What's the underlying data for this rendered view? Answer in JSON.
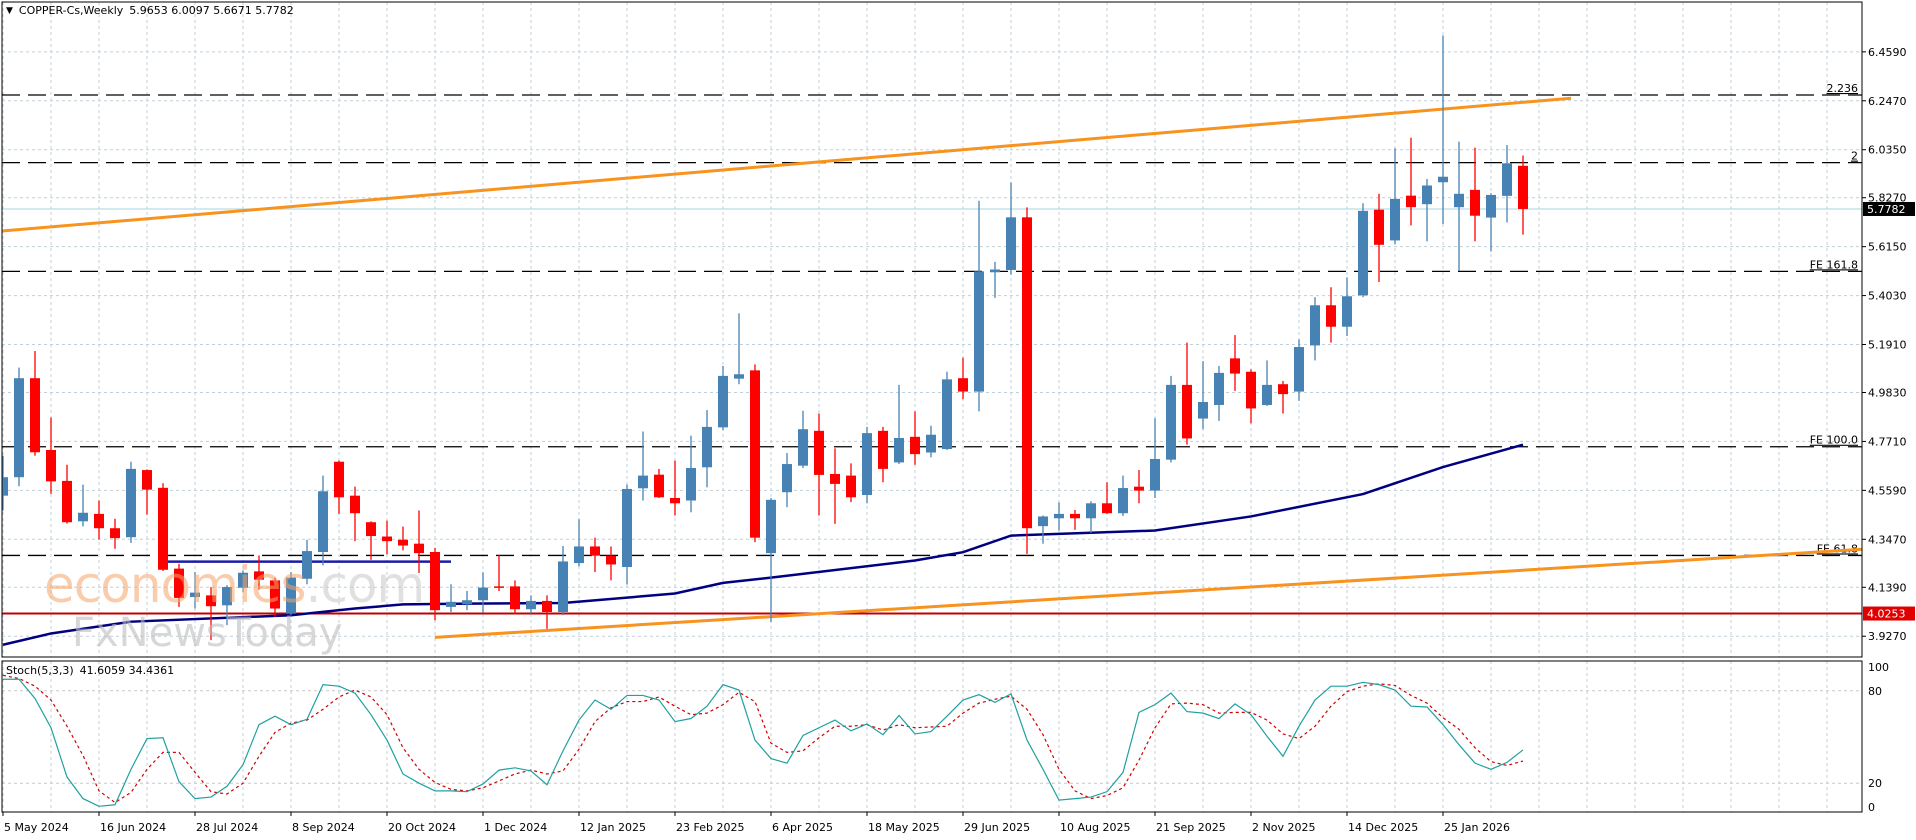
{
  "header": {
    "collapse_icon": "triangle-down-icon",
    "symbol_timeframe": "COPPER-Cs,Weekly",
    "ohlc": "5.9653 6.0097 5.6671 5.7782"
  },
  "price_axis": {
    "ticks": [
      "6.4590",
      "6.2470",
      "6.0350",
      "5.8270",
      "5.6150",
      "5.4030",
      "5.1910",
      "4.9830",
      "4.7710",
      "4.5590",
      "4.3470",
      "4.1390",
      "3.9270"
    ]
  },
  "current_price_label": "5.7782",
  "support_price_label": "4.0253",
  "stoch": {
    "label": "Stoch(5,3,3)",
    "values": "41.6059 34.4361",
    "ticks": [
      "100",
      "80",
      "20",
      "0"
    ]
  },
  "time_axis": {
    "ticks": [
      "5 May 2024",
      "16 Jun 2024",
      "28 Jul 2024",
      "8 Sep 2024",
      "20 Oct 2024",
      "1 Dec 2024",
      "12 Jan 2025",
      "23 Feb 2025",
      "6 Apr 2025",
      "18 May 2025",
      "29 Jun 2025",
      "10 Aug 2025",
      "21 Sep 2025",
      "2 Nov 2025",
      "14 Dec 2025",
      "25 Jan 2026"
    ]
  },
  "watermark": {
    "brand_main": "economies",
    "brand_suffix": ".com",
    "brand_2": "FxNewsToday"
  },
  "colors": {
    "bull": "#4682B4",
    "bear": "#FF0000",
    "ma": "#000080",
    "channel": "#F7931E",
    "support": "#C00000",
    "current_price_line": "#B8DDE6",
    "stoch_k": "#20A0A0",
    "stoch_d": "#D00000",
    "grid": "#C0D0D8"
  },
  "chart_data": {
    "type": "candlestick",
    "timeframe": "Weekly",
    "first_bar": "5 May 2024",
    "ylim": [
      3.837,
      6.675
    ],
    "grid": true,
    "ohlc": [
      [
        4.536,
        4.709,
        4.472,
        4.616
      ],
      [
        4.616,
        5.091,
        4.577,
        5.045
      ],
      [
        5.045,
        5.163,
        4.709,
        4.724
      ],
      [
        4.734,
        4.875,
        4.544,
        4.598
      ],
      [
        4.6,
        4.67,
        4.415,
        4.421
      ],
      [
        4.425,
        4.584,
        4.403,
        4.462
      ],
      [
        4.457,
        4.515,
        4.346,
        4.395
      ],
      [
        4.395,
        4.436,
        4.306,
        4.352
      ],
      [
        4.356,
        4.683,
        4.331,
        4.652
      ],
      [
        4.647,
        4.65,
        4.454,
        4.562
      ],
      [
        4.57,
        4.59,
        4.21,
        4.215
      ],
      [
        4.22,
        4.241,
        4.054,
        4.093
      ],
      [
        4.097,
        4.205,
        4.047,
        4.116
      ],
      [
        4.104,
        4.14,
        3.91,
        4.057
      ],
      [
        4.061,
        4.148,
        3.975,
        4.14
      ],
      [
        4.137,
        4.212,
        4.119,
        4.202
      ],
      [
        4.208,
        4.277,
        4.129,
        4.172
      ],
      [
        4.169,
        4.181,
        4.011,
        4.047
      ],
      [
        4.025,
        4.205,
        4.018,
        4.181
      ],
      [
        4.176,
        4.345,
        4.152,
        4.296
      ],
      [
        4.292,
        4.623,
        4.234,
        4.555
      ],
      [
        4.683,
        4.688,
        4.457,
        4.529
      ],
      [
        4.536,
        4.575,
        4.339,
        4.46
      ],
      [
        4.421,
        4.425,
        4.258,
        4.361
      ],
      [
        4.359,
        4.428,
        4.282,
        4.339
      ],
      [
        4.345,
        4.402,
        4.299,
        4.32
      ],
      [
        4.328,
        4.472,
        4.201,
        4.287
      ],
      [
        4.292,
        4.31,
        3.996,
        4.04
      ],
      [
        4.054,
        4.152,
        4.032,
        4.076
      ],
      [
        4.066,
        4.123,
        4.04,
        4.083
      ],
      [
        4.083,
        4.204,
        4.028,
        4.138
      ],
      [
        4.143,
        4.28,
        4.123,
        4.14
      ],
      [
        4.143,
        4.169,
        4.025,
        4.044
      ],
      [
        4.044,
        4.104,
        4.025,
        4.08
      ],
      [
        4.08,
        4.104,
        3.959,
        4.032
      ],
      [
        4.032,
        4.318,
        4.018,
        4.251
      ],
      [
        4.244,
        4.434,
        4.23,
        4.316
      ],
      [
        4.316,
        4.354,
        4.205,
        4.276
      ],
      [
        4.276,
        4.316,
        4.169,
        4.238
      ],
      [
        4.227,
        4.584,
        4.152,
        4.565
      ],
      [
        4.568,
        4.814,
        4.515,
        4.623
      ],
      [
        4.627,
        4.652,
        4.526,
        4.529
      ],
      [
        4.526,
        4.688,
        4.45,
        4.503
      ],
      [
        4.515,
        4.796,
        4.464,
        4.656
      ],
      [
        4.659,
        4.907,
        4.572,
        4.834
      ],
      [
        4.832,
        5.098,
        4.82,
        5.055
      ],
      [
        5.043,
        5.326,
        5.019,
        5.062
      ],
      [
        5.079,
        5.105,
        4.335,
        4.354
      ],
      [
        4.287,
        4.526,
        3.989,
        4.518
      ],
      [
        4.551,
        4.721,
        4.486,
        4.673
      ],
      [
        4.666,
        4.904,
        4.656,
        4.824
      ],
      [
        4.817,
        4.892,
        4.45,
        4.626
      ],
      [
        4.63,
        4.741,
        4.414,
        4.587
      ],
      [
        4.623,
        4.676,
        4.508,
        4.529
      ],
      [
        4.539,
        4.834,
        4.503,
        4.807
      ],
      [
        4.817,
        4.834,
        4.594,
        4.652
      ],
      [
        4.68,
        5.016,
        4.673,
        4.786
      ],
      [
        4.791,
        4.901,
        4.67,
        4.716
      ],
      [
        4.723,
        4.839,
        4.702,
        4.8
      ],
      [
        4.738,
        5.073,
        4.734,
        5.04
      ],
      [
        5.045,
        5.134,
        4.954,
        4.987
      ],
      [
        4.987,
        5.814,
        4.901,
        5.508
      ],
      [
        5.504,
        5.549,
        5.393,
        5.516
      ],
      [
        5.514,
        5.893,
        5.494,
        5.742
      ],
      [
        5.742,
        5.785,
        4.284,
        4.395
      ],
      [
        4.404,
        4.45,
        4.328,
        4.446
      ],
      [
        4.438,
        4.507,
        4.385,
        4.457
      ],
      [
        4.457,
        4.474,
        4.388,
        4.438
      ],
      [
        4.438,
        4.512,
        4.374,
        4.503
      ],
      [
        4.503,
        4.594,
        4.457,
        4.46
      ],
      [
        4.46,
        4.623,
        4.448,
        4.569
      ],
      [
        4.575,
        4.647,
        4.503,
        4.558
      ],
      [
        4.558,
        4.872,
        4.526,
        4.695
      ],
      [
        4.692,
        5.055,
        4.68,
        5.016
      ],
      [
        5.016,
        5.199,
        4.757,
        4.784
      ],
      [
        4.87,
        5.119,
        4.824,
        4.942
      ],
      [
        4.929,
        5.098,
        4.86,
        5.068
      ],
      [
        5.131,
        5.232,
        4.99,
        5.065
      ],
      [
        5.073,
        5.083,
        4.849,
        4.914
      ],
      [
        4.929,
        5.122,
        4.925,
        5.016
      ],
      [
        5.019,
        5.033,
        4.892,
        4.976
      ],
      [
        4.987,
        5.213,
        4.947,
        5.18
      ],
      [
        5.187,
        5.396,
        5.122,
        5.361
      ],
      [
        5.361,
        5.439,
        5.199,
        5.268
      ],
      [
        5.268,
        5.482,
        5.228,
        5.4
      ],
      [
        5.404,
        5.803,
        5.396,
        5.77
      ],
      [
        5.775,
        5.844,
        5.462,
        5.623
      ],
      [
        5.642,
        6.041,
        5.626,
        5.822
      ],
      [
        5.836,
        6.087,
        5.707,
        5.786
      ],
      [
        5.799,
        5.908,
        5.638,
        5.88
      ],
      [
        5.894,
        6.53,
        5.713,
        5.918
      ],
      [
        5.786,
        6.07,
        5.511,
        5.844
      ],
      [
        5.861,
        6.044,
        5.638,
        5.749
      ],
      [
        5.741,
        5.846,
        5.594,
        5.839
      ],
      [
        5.835,
        6.055,
        5.72,
        5.976
      ],
      [
        5.9653,
        6.0097,
        5.6671,
        5.7782
      ]
    ],
    "moving_average": [
      [
        "5 May 2024",
        3.89
      ],
      [
        "26 May 2024",
        3.939
      ],
      [
        "30 Jun 2024",
        3.99
      ],
      [
        "8 Sep 2024",
        4.018
      ],
      [
        "6 Oct 2024",
        4.047
      ],
      [
        "27 Oct 2024",
        4.065
      ],
      [
        "24 Nov 2024",
        4.068
      ],
      [
        "5 Jan 2025",
        4.071
      ],
      [
        "23 Feb 2025",
        4.112
      ],
      [
        "16 Mar 2025",
        4.158
      ],
      [
        "6 Apr 2025",
        4.181
      ],
      [
        "8 Jun 2025",
        4.255
      ],
      [
        "29 Jun 2025",
        4.291
      ],
      [
        "20 Jul 2025",
        4.363
      ],
      [
        "21 Sep 2025",
        4.385
      ],
      [
        "2 Nov 2025",
        4.446
      ],
      [
        "21 Dec 2025",
        4.543
      ],
      [
        "25 Jan 2026",
        4.66
      ],
      [
        "1 Mar 2026",
        4.757
      ]
    ],
    "range_line": {
      "from": "14 Jul 2024",
      "to": "17 Nov 2024",
      "price": 4.25
    },
    "fibonacci_levels": [
      {
        "label": "2.236",
        "price": 6.272
      },
      {
        "label": "2",
        "price": 5.979
      },
      {
        "label": "FE 161.8",
        "price": 5.508
      },
      {
        "label": "FE 100.0",
        "price": 4.748
      },
      {
        "label": "FE 61.8",
        "price": 4.277
      }
    ],
    "channel_lines": [
      {
        "points": [
          [
            "5 May 2024",
            5.683
          ],
          [
            "22 Mar 2026",
            6.258
          ]
        ],
        "extend_left": true
      },
      {
        "points": [
          [
            "10 Nov 2024",
            3.922
          ],
          [
            "1 Mar 2026",
            4.213
          ]
        ],
        "extend_right": true
      }
    ],
    "horizontal_lines": [
      {
        "price": 4.0253,
        "kind": "support"
      },
      {
        "price": 5.7782,
        "kind": "current"
      }
    ],
    "stochastic": {
      "ylim": [
        0,
        100
      ],
      "levels": [
        80,
        20
      ],
      "k": [
        87.5,
        87.5,
        75,
        56,
        24,
        10,
        5,
        6,
        29,
        49,
        49.5,
        21,
        10,
        11,
        18,
        32,
        58,
        63.5,
        58,
        61.5,
        84,
        83,
        78.5,
        64.5,
        48,
        26,
        20,
        15,
        15,
        14.5,
        19.5,
        28.5,
        30,
        28,
        19,
        41,
        61,
        74,
        68,
        77,
        77,
        74,
        60,
        62,
        70,
        84,
        80.5,
        48,
        36,
        33,
        51,
        56,
        61,
        54,
        58.5,
        51.5,
        64,
        52,
        53.5,
        63.5,
        74,
        77.5,
        72.5,
        78,
        48,
        29,
        9,
        10,
        11,
        14.5,
        27,
        66,
        71,
        78.5,
        66.5,
        65.5,
        62,
        71.5,
        64.5,
        50.5,
        37.5,
        57,
        74,
        83,
        83,
        85.5,
        84,
        80.5,
        70,
        69.5,
        58,
        45,
        33,
        29,
        33.5,
        41.6
      ],
      "d": [
        90,
        88,
        83,
        74,
        57,
        38,
        15,
        7.5,
        14,
        29,
        40,
        40,
        27,
        14.5,
        13,
        20,
        37.5,
        53,
        59,
        61,
        68,
        76,
        80.5,
        76,
        64.5,
        43,
        29,
        20.5,
        16,
        15,
        17,
        21.5,
        26,
        28.5,
        26,
        28,
        42,
        60,
        69,
        73,
        73,
        76,
        70,
        64.5,
        65.5,
        71,
        79,
        73,
        46,
        40,
        41,
        49.5,
        57,
        57,
        58,
        54.5,
        58,
        56,
        56.5,
        57,
        65.5,
        72,
        74.5,
        76.5,
        68,
        51.5,
        29,
        15,
        10,
        12,
        17,
        35,
        56,
        71.5,
        72,
        71,
        65.5,
        66,
        66,
        61,
        52,
        49,
        57,
        70,
        79.5,
        83,
        84.5,
        83.5,
        77,
        72,
        62.5,
        55,
        43,
        34,
        31.5,
        34.4
      ]
    }
  }
}
